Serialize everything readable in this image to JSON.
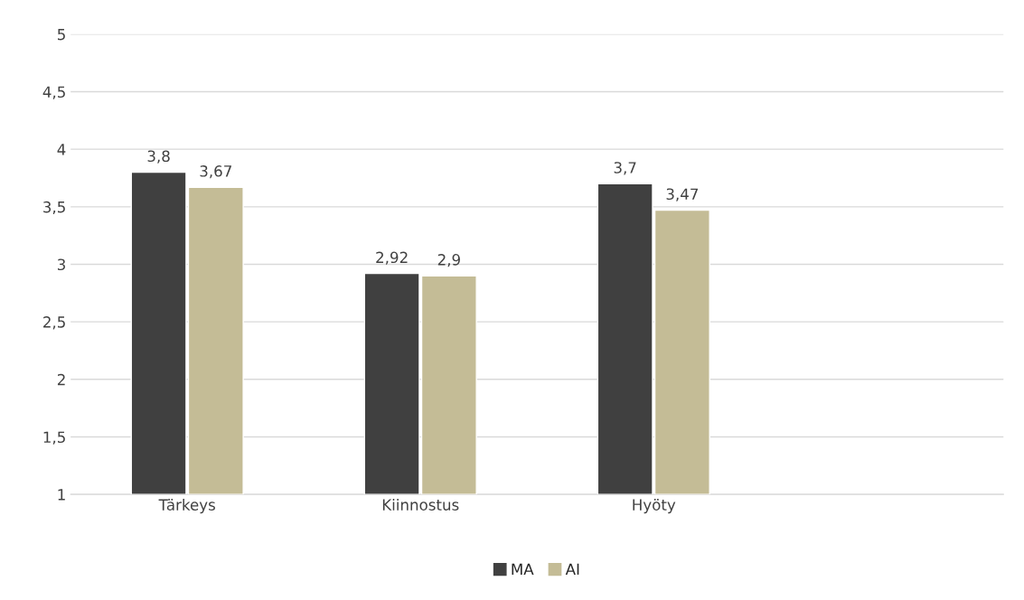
{
  "chart_data": {
    "type": "bar",
    "categories": [
      "Tärkeys",
      "Kiinnostus",
      "Hyöty",
      null
    ],
    "series": [
      {
        "name": "MA",
        "color": "#404040",
        "values": [
          3.8,
          2.92,
          3.7,
          null
        ],
        "value_labels": [
          "3,8",
          "2,92",
          "3,7",
          null
        ]
      },
      {
        "name": "AI",
        "color": "#c4bc96",
        "values": [
          3.67,
          2.9,
          3.47,
          null
        ],
        "value_labels": [
          "3,67",
          "2,9",
          "3,47",
          null
        ]
      }
    ],
    "ylim": [
      1,
      5
    ],
    "yticks": [
      1,
      {
        "value": 1.5,
        "label": "1,5"
      },
      2,
      {
        "value": 2.5,
        "label": "2,5"
      },
      3,
      {
        "value": 3.5,
        "label": "3,5"
      },
      4,
      {
        "value": 4.5,
        "label": "4,5"
      },
      5
    ],
    "grid": "y",
    "legend": "bottom"
  }
}
